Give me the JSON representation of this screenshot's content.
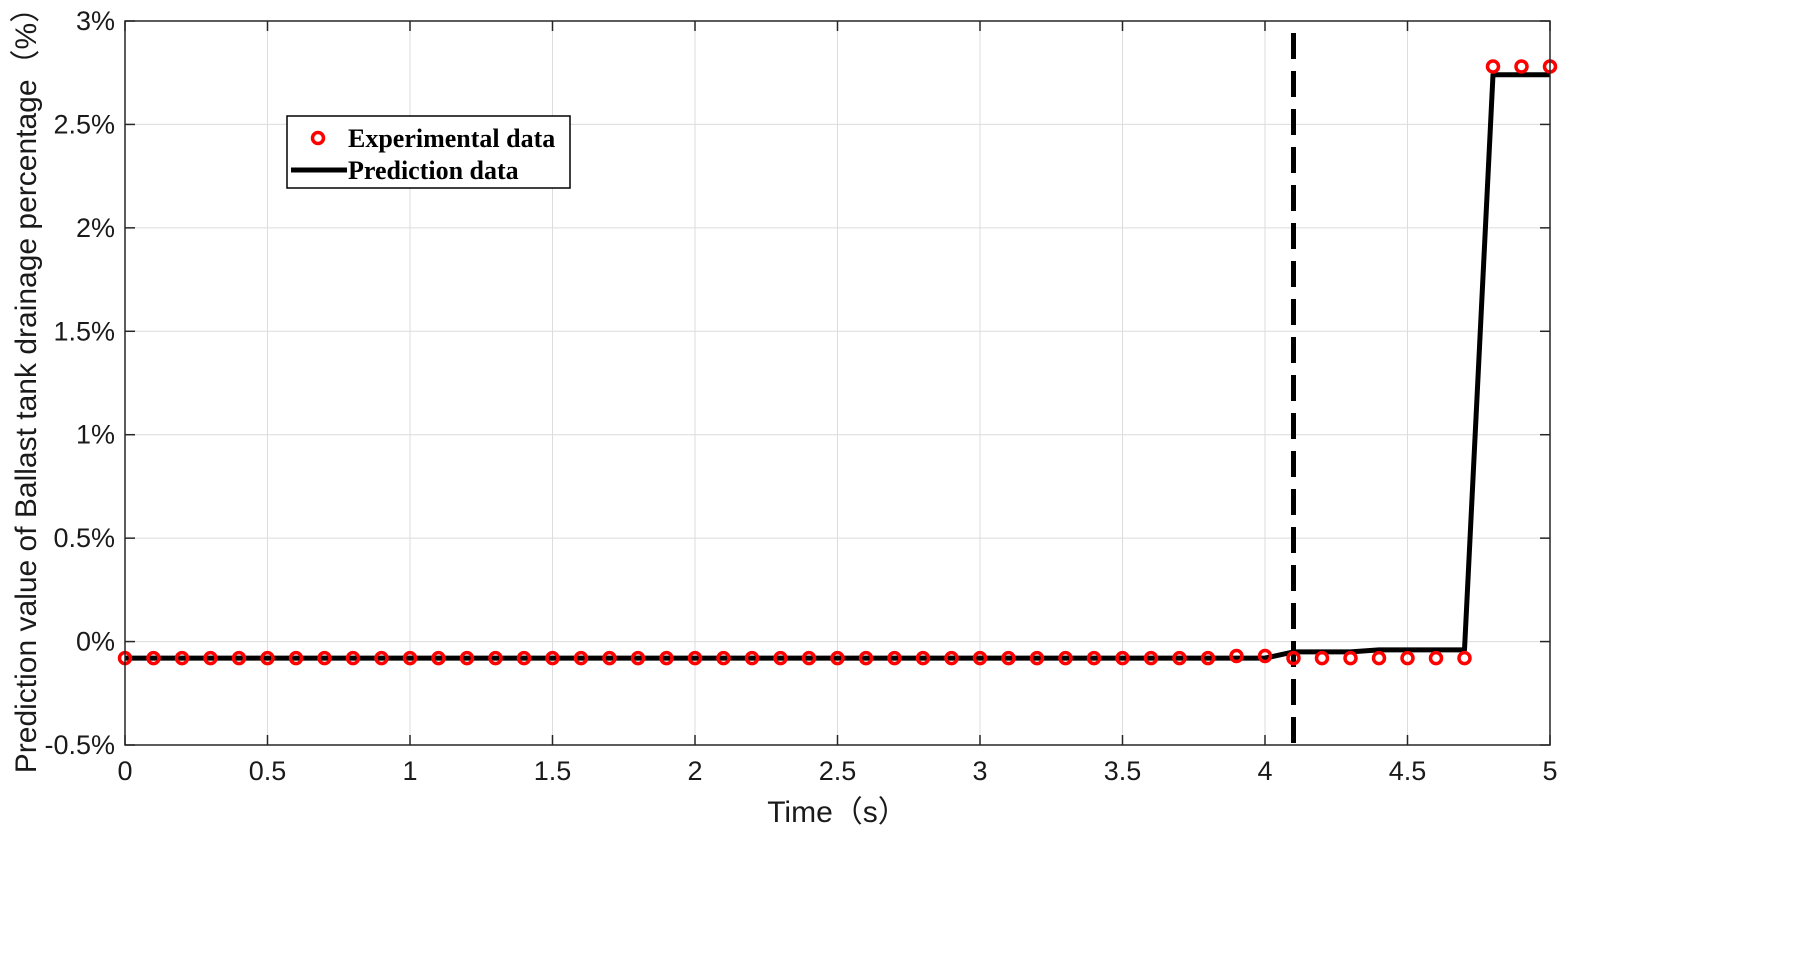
{
  "chart_data": {
    "type": "line",
    "title": "",
    "xlabel": "Time（s）",
    "ylabel": "Prediction value of Ballast tank drainage percentage（%）",
    "xlim": [
      0,
      5
    ],
    "ylim": [
      -0.5,
      3
    ],
    "x_ticks": [
      0,
      0.5,
      1,
      1.5,
      2,
      2.5,
      3,
      3.5,
      4,
      4.5,
      5
    ],
    "x_tick_labels": [
      "0",
      "0.5",
      "1",
      "1.5",
      "2",
      "2.5",
      "3",
      "3.5",
      "4",
      "4.5",
      "5"
    ],
    "y_ticks": [
      -0.5,
      0,
      0.5,
      1,
      1.5,
      2,
      2.5,
      3
    ],
    "y_tick_labels": [
      "-0.5%",
      "0%",
      "0.5%",
      "1%",
      "1.5%",
      "2%",
      "2.5%",
      "3%"
    ],
    "grid": true,
    "legend_position": "top-left",
    "vertical_dashed_line_x": 4.1,
    "series": [
      {
        "name": "Experimental data",
        "style": "markers",
        "color": "#ff0000",
        "points": [
          [
            0,
            -0.08
          ],
          [
            0.1,
            -0.08
          ],
          [
            0.2,
            -0.08
          ],
          [
            0.3,
            -0.08
          ],
          [
            0.4,
            -0.08
          ],
          [
            0.5,
            -0.08
          ],
          [
            0.6,
            -0.08
          ],
          [
            0.7,
            -0.08
          ],
          [
            0.8,
            -0.08
          ],
          [
            0.9,
            -0.08
          ],
          [
            1.0,
            -0.08
          ],
          [
            1.1,
            -0.08
          ],
          [
            1.2,
            -0.08
          ],
          [
            1.3,
            -0.08
          ],
          [
            1.4,
            -0.08
          ],
          [
            1.5,
            -0.08
          ],
          [
            1.6,
            -0.08
          ],
          [
            1.7,
            -0.08
          ],
          [
            1.8,
            -0.08
          ],
          [
            1.9,
            -0.08
          ],
          [
            2.0,
            -0.08
          ],
          [
            2.1,
            -0.08
          ],
          [
            2.2,
            -0.08
          ],
          [
            2.3,
            -0.08
          ],
          [
            2.4,
            -0.08
          ],
          [
            2.5,
            -0.08
          ],
          [
            2.6,
            -0.08
          ],
          [
            2.7,
            -0.08
          ],
          [
            2.8,
            -0.08
          ],
          [
            2.9,
            -0.08
          ],
          [
            3.0,
            -0.08
          ],
          [
            3.1,
            -0.08
          ],
          [
            3.2,
            -0.08
          ],
          [
            3.3,
            -0.08
          ],
          [
            3.4,
            -0.08
          ],
          [
            3.5,
            -0.08
          ],
          [
            3.6,
            -0.08
          ],
          [
            3.7,
            -0.08
          ],
          [
            3.8,
            -0.08
          ],
          [
            3.9,
            -0.07
          ],
          [
            4.0,
            -0.07
          ],
          [
            4.1,
            -0.08
          ],
          [
            4.2,
            -0.08
          ],
          [
            4.3,
            -0.08
          ],
          [
            4.4,
            -0.08
          ],
          [
            4.5,
            -0.08
          ],
          [
            4.6,
            -0.08
          ],
          [
            4.7,
            -0.08
          ],
          [
            4.8,
            2.78
          ],
          [
            4.9,
            2.78
          ],
          [
            5.0,
            2.78
          ]
        ]
      },
      {
        "name": "Prediction data",
        "style": "line",
        "color": "#000000",
        "points": [
          [
            0,
            -0.08
          ],
          [
            0.5,
            -0.08
          ],
          [
            1.0,
            -0.08
          ],
          [
            1.5,
            -0.08
          ],
          [
            2.0,
            -0.08
          ],
          [
            2.5,
            -0.08
          ],
          [
            3.0,
            -0.08
          ],
          [
            3.5,
            -0.08
          ],
          [
            3.9,
            -0.08
          ],
          [
            4.0,
            -0.08
          ],
          [
            4.1,
            -0.05
          ],
          [
            4.2,
            -0.05
          ],
          [
            4.3,
            -0.05
          ],
          [
            4.4,
            -0.04
          ],
          [
            4.5,
            -0.04
          ],
          [
            4.6,
            -0.04
          ],
          [
            4.7,
            -0.04
          ],
          [
            4.8,
            2.74
          ],
          [
            4.9,
            2.74
          ],
          [
            5.0,
            2.74
          ]
        ]
      }
    ]
  }
}
